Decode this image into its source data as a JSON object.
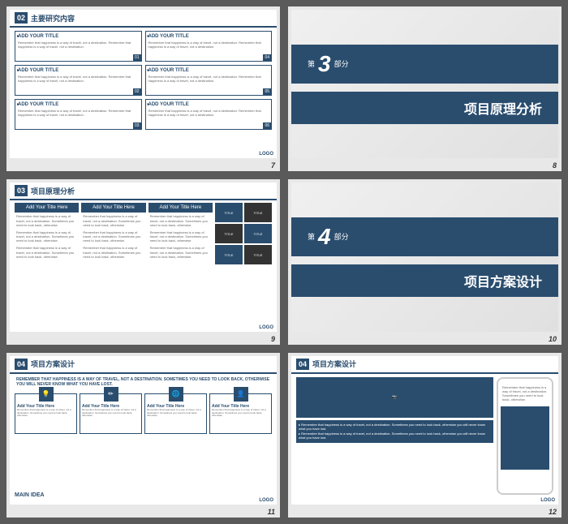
{
  "colors": {
    "primary": "#2a4d6e",
    "bg": "#5a5a5a",
    "light": "#e8e8e8"
  },
  "common": {
    "addTitle": "ADD YOUR TITLE",
    "addTitleHere": "Add Your Title Here",
    "lorem": "Remember that happiness is a way of travel, not a destination. Remember that happiness is a way of travel, not a destination.",
    "loremShort": "Remember that happiness is a way of travel, not a destination. Sometimes you need to look back, otherwise.",
    "logo": "LOGO"
  },
  "slide7": {
    "num": "02",
    "title": "主要研究内容",
    "pageNum": "7",
    "boxes": [
      {
        "badge": "01"
      },
      {
        "badge": "04"
      },
      {
        "badge": "02"
      },
      {
        "badge": "05"
      },
      {
        "badge": "03"
      },
      {
        "badge": "06"
      }
    ]
  },
  "slide8": {
    "pre": "第",
    "num": "3",
    "post": "部分",
    "title": "项目原理分析",
    "pageNum": "8"
  },
  "slide9": {
    "num": "03",
    "title": "项目原理分析",
    "pageNum": "9",
    "iconLabels": [
      "TITLE",
      "TITLE",
      "TITLE",
      "TITLE",
      "TITLE",
      "TITLE"
    ]
  },
  "slide10": {
    "pre": "第",
    "num": "4",
    "post": "部分",
    "title": "项目方案设计",
    "pageNum": "10"
  },
  "slide11": {
    "num": "04",
    "title": "项目方案设计",
    "pageNum": "11",
    "quote": "REMEMBER THAT HAPPINESS IS A WAY OF TRAVEL, NOT A DESTINATION. SOMETIMES YOU NEED TO LOOK BACK, OTHERWISE YOU WILL NEVER KNOW WHAT YOU HAVE LOST.",
    "mainIdea": "MAIN IDEA",
    "icons": [
      "💡",
      "✏",
      "🌐",
      "👤"
    ]
  },
  "slide12": {
    "num": "04",
    "title": "项目方案设计",
    "pageNum": "12",
    "bullet": "▸ Remember that happiness is a way of travel, not a destination. Sometimes you need to look back, otherwise you will never know what you have lost."
  }
}
